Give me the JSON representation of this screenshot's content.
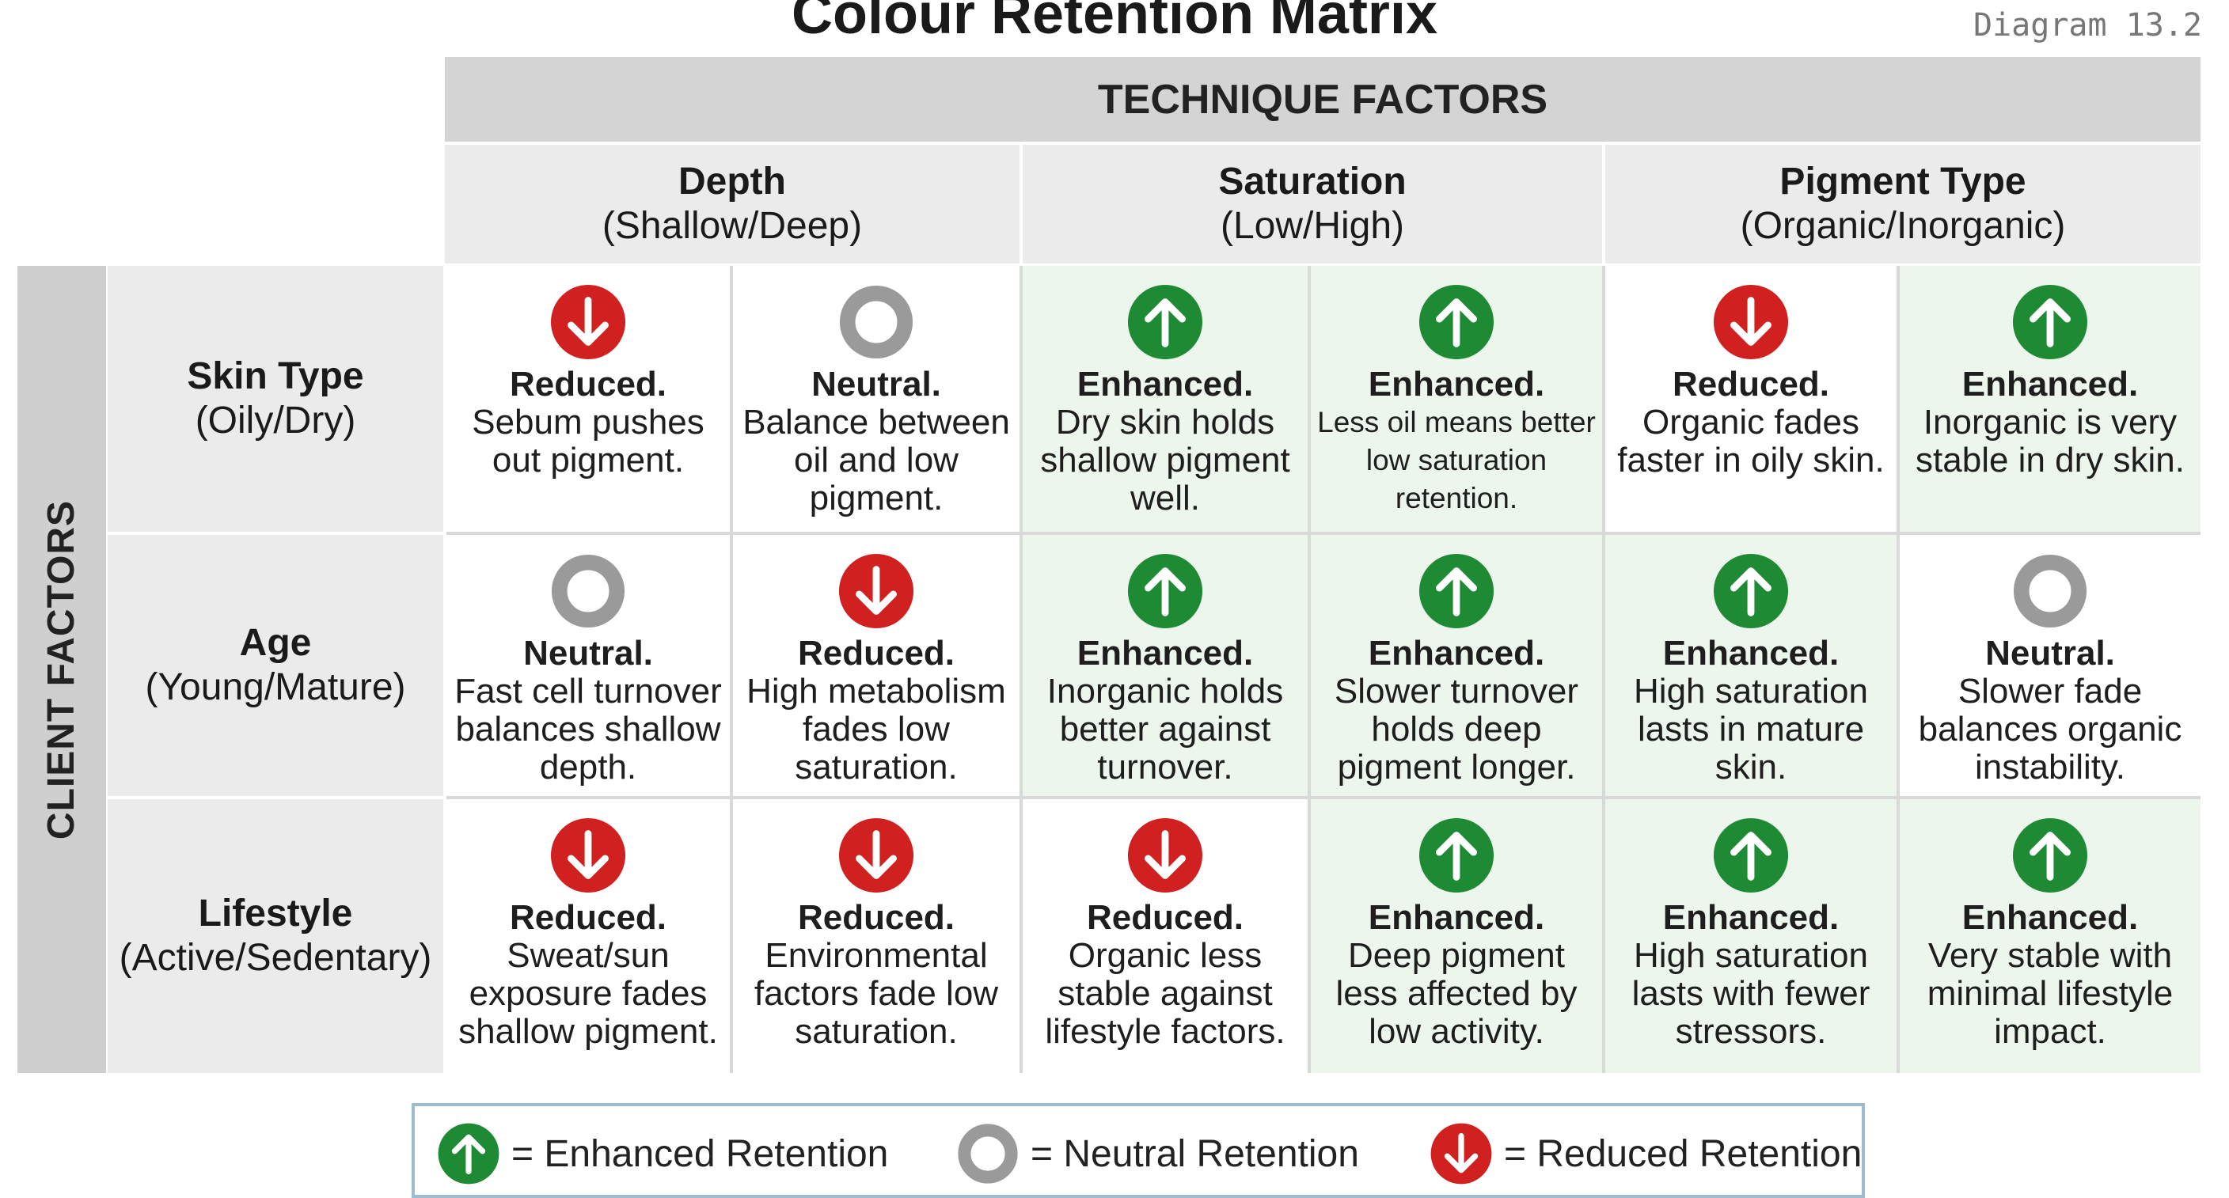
{
  "title": "Colour Retention Matrix",
  "diagram_label": "Diagram 13.2",
  "technique_header": "TECHNIQUE FACTORS",
  "client_header": "CLIENT FACTORS",
  "columns": [
    {
      "name": "Depth",
      "range": "(Shallow/Deep)"
    },
    {
      "name": "Saturation",
      "range": "(Low/High)"
    },
    {
      "name": "Pigment Type",
      "range": "(Organic/Inorganic)"
    }
  ],
  "rows": [
    {
      "name": "Skin Type",
      "range": "(Oily/Dry)",
      "cells": [
        {
          "status": "Reduced.",
          "note": "Sebum pushes out pigment.",
          "icon": "arrow-down-icon"
        },
        {
          "status": "Neutral.",
          "note": "Balance between oil and low pigment.",
          "icon": "ring-icon"
        },
        {
          "status": "Enhanced.",
          "note": "Dry skin holds shallow pigment well.",
          "icon": "arrow-up-icon"
        },
        {
          "status": "Enhanced.",
          "note": "Less oil means better low saturation retention.",
          "icon": "arrow-up-icon"
        },
        {
          "status": "Reduced.",
          "note": "Organic fades faster in oily skin.",
          "icon": "arrow-down-icon"
        },
        {
          "status": "Enhanced.",
          "note": "Inorganic is very stable in dry skin.",
          "icon": "arrow-up-icon"
        }
      ]
    },
    {
      "name": "Age",
      "range": "(Young/Mature)",
      "cells": [
        {
          "status": "Neutral.",
          "note": "Fast cell turnover balances shallow depth.",
          "icon": "ring-icon"
        },
        {
          "status": "Reduced.",
          "note": "High metabolism fades low saturation.",
          "icon": "arrow-down-icon"
        },
        {
          "status": "Enhanced.",
          "note": "Inorganic holds better against turnover.",
          "icon": "arrow-up-icon"
        },
        {
          "status": "Enhanced.",
          "note": "Slower turnover holds deep pigment longer.",
          "icon": "arrow-up-icon"
        },
        {
          "status": "Enhanced.",
          "note": "High saturation lasts in mature skin.",
          "icon": "arrow-up-icon"
        },
        {
          "status": "Neutral.",
          "note": "Slower fade balances organic instability.",
          "icon": "ring-icon"
        }
      ]
    },
    {
      "name": "Lifestyle",
      "range": "(Active/Sedentary)",
      "cells": [
        {
          "status": "Reduced.",
          "note": "Sweat/sun exposure fades shallow pigment.",
          "icon": "arrow-down-icon"
        },
        {
          "status": "Reduced.",
          "note": "Environmental factors fade low saturation.",
          "icon": "arrow-down-icon"
        },
        {
          "status": "Reduced.",
          "note": "Organic less stable against lifestyle factors.",
          "icon": "arrow-down-icon"
        },
        {
          "status": "Enhanced.",
          "note": "Deep pigment less affected by low activity.",
          "icon": "arrow-up-icon"
        },
        {
          "status": "Enhanced.",
          "note": "High saturation lasts with fewer stressors.",
          "icon": "arrow-up-icon"
        },
        {
          "status": "Enhanced.",
          "note": "Very stable with minimal lifestyle impact.",
          "icon": "arrow-up-icon"
        }
      ]
    }
  ],
  "legend": [
    {
      "icon": "arrow-up-icon",
      "label": "= Enhanced Retention"
    },
    {
      "icon": "ring-icon",
      "label": "= Neutral Retention"
    },
    {
      "icon": "arrow-down-icon",
      "label": "= Reduced Retention"
    }
  ],
  "colors": {
    "enhanced": "#1e8a34",
    "neutral": "#9a9a9a",
    "reduced": "#d02020",
    "enhanced_cell_bg": "#ecf6ec"
  }
}
